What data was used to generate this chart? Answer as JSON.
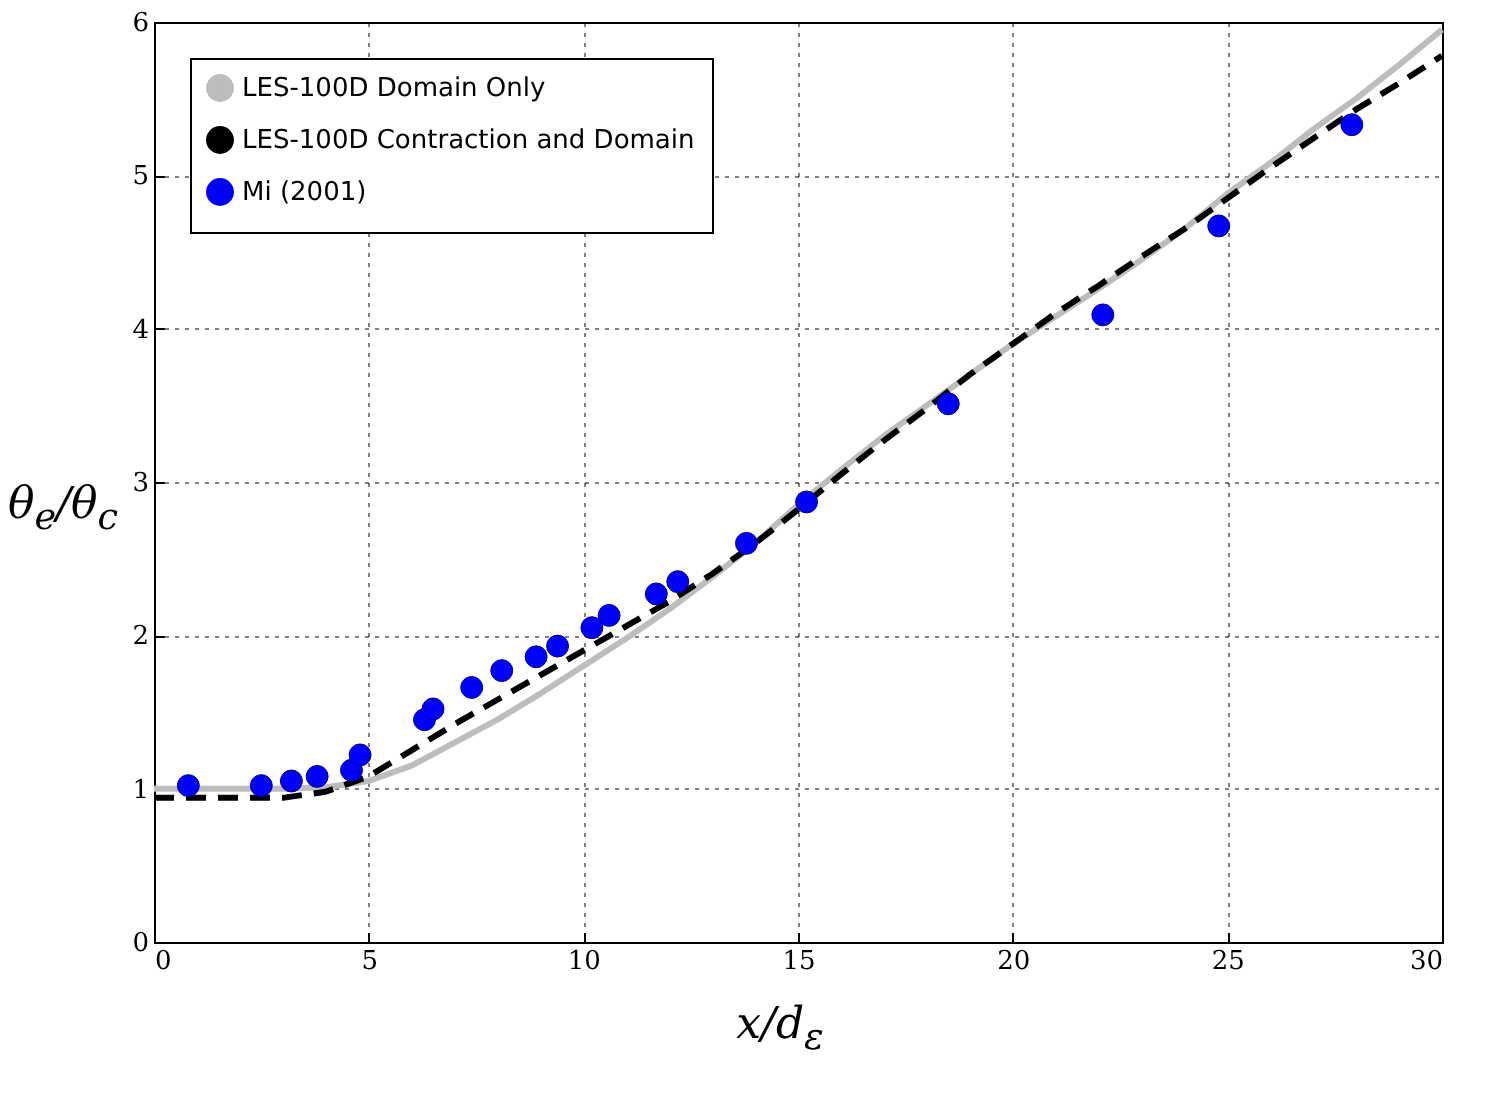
{
  "chart_data": {
    "type": "line",
    "xlabel": "x/d$_{ε}$",
    "ylabel": "θ$_{e}$/θ$_{c}$",
    "xlim": [
      0,
      30
    ],
    "ylim": [
      0,
      6
    ],
    "xticks": [
      0,
      5,
      10,
      15,
      20,
      25,
      30
    ],
    "yticks": [
      0,
      1,
      2,
      3,
      4,
      5,
      6
    ],
    "grid": true,
    "legend": "top left",
    "series": [
      {
        "name": "LES-100D Domain Only",
        "color": "#bdbdbd",
        "line_style": "solid",
        "x": [
          0,
          3,
          4,
          5,
          6,
          7,
          8,
          9,
          10,
          11,
          12,
          13,
          14,
          15,
          16,
          17,
          18,
          19,
          20,
          21,
          22,
          23,
          24,
          25,
          26,
          27,
          28,
          29,
          30
        ],
        "values": [
          1.0,
          1.0,
          1.01,
          1.05,
          1.15,
          1.3,
          1.45,
          1.62,
          1.8,
          1.98,
          2.17,
          2.38,
          2.6,
          2.85,
          3.08,
          3.3,
          3.5,
          3.7,
          3.9,
          4.08,
          4.26,
          4.45,
          4.65,
          4.88,
          5.08,
          5.3,
          5.5,
          5.72,
          5.95
        ]
      },
      {
        "name": "LES-100D Contraction and Domain",
        "color": "#000000",
        "line_style": "dashed",
        "x": [
          0,
          3,
          4,
          5,
          6,
          7,
          8,
          9,
          10,
          11,
          12,
          13,
          14,
          15,
          16,
          17,
          18,
          19,
          20,
          21,
          22,
          23,
          24,
          25,
          26,
          27,
          28,
          29,
          30
        ],
        "values": [
          0.94,
          0.94,
          0.98,
          1.08,
          1.25,
          1.42,
          1.58,
          1.74,
          1.9,
          2.06,
          2.22,
          2.4,
          2.6,
          2.82,
          3.05,
          3.27,
          3.48,
          3.7,
          3.9,
          4.1,
          4.28,
          4.47,
          4.65,
          4.85,
          5.05,
          5.24,
          5.43,
          5.6,
          5.78
        ]
      },
      {
        "name": "Mi (2001)",
        "color": "#0000ff",
        "type": "scatter",
        "marker": "circle",
        "x": [
          0.8,
          2.5,
          3.2,
          3.8,
          4.6,
          4.8,
          6.3,
          6.5,
          7.4,
          8.1,
          8.9,
          9.4,
          10.2,
          10.6,
          11.7,
          12.2,
          13.8,
          15.2,
          18.5,
          22.1,
          24.8,
          27.9
        ],
        "values": [
          1.02,
          1.02,
          1.05,
          1.08,
          1.12,
          1.22,
          1.45,
          1.52,
          1.66,
          1.77,
          1.86,
          1.93,
          2.05,
          2.13,
          2.27,
          2.35,
          2.6,
          2.87,
          3.51,
          4.09,
          4.67,
          5.33
        ]
      }
    ]
  }
}
